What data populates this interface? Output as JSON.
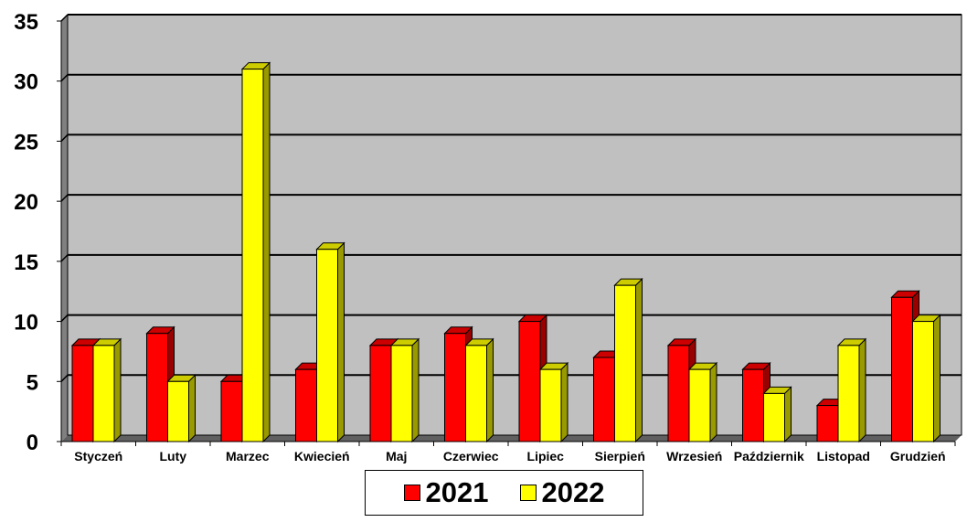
{
  "chart_data": {
    "type": "bar",
    "categories": [
      "Styczeń",
      "Luty",
      "Marzec",
      "Kwiecień",
      "Maj",
      "Czerwiec",
      "Lipiec",
      "Sierpień",
      "Wrzesień",
      "Październik",
      "Listopad",
      "Grudzień"
    ],
    "series": [
      {
        "name": "2021",
        "color": "#ff0000",
        "values": [
          8,
          9,
          5,
          6,
          8,
          9,
          10,
          7,
          8,
          6,
          3,
          12
        ]
      },
      {
        "name": "2022",
        "color": "#ffff00",
        "values": [
          8,
          5,
          31,
          16,
          8,
          8,
          6,
          13,
          6,
          4,
          8,
          10
        ]
      }
    ],
    "yticks": [
      "0",
      "5",
      "10",
      "15",
      "20",
      "25",
      "30",
      "35"
    ],
    "ylim": [
      0,
      35
    ],
    "grid": true,
    "legend": "bottom",
    "plot_background": "#c0c0c0"
  }
}
